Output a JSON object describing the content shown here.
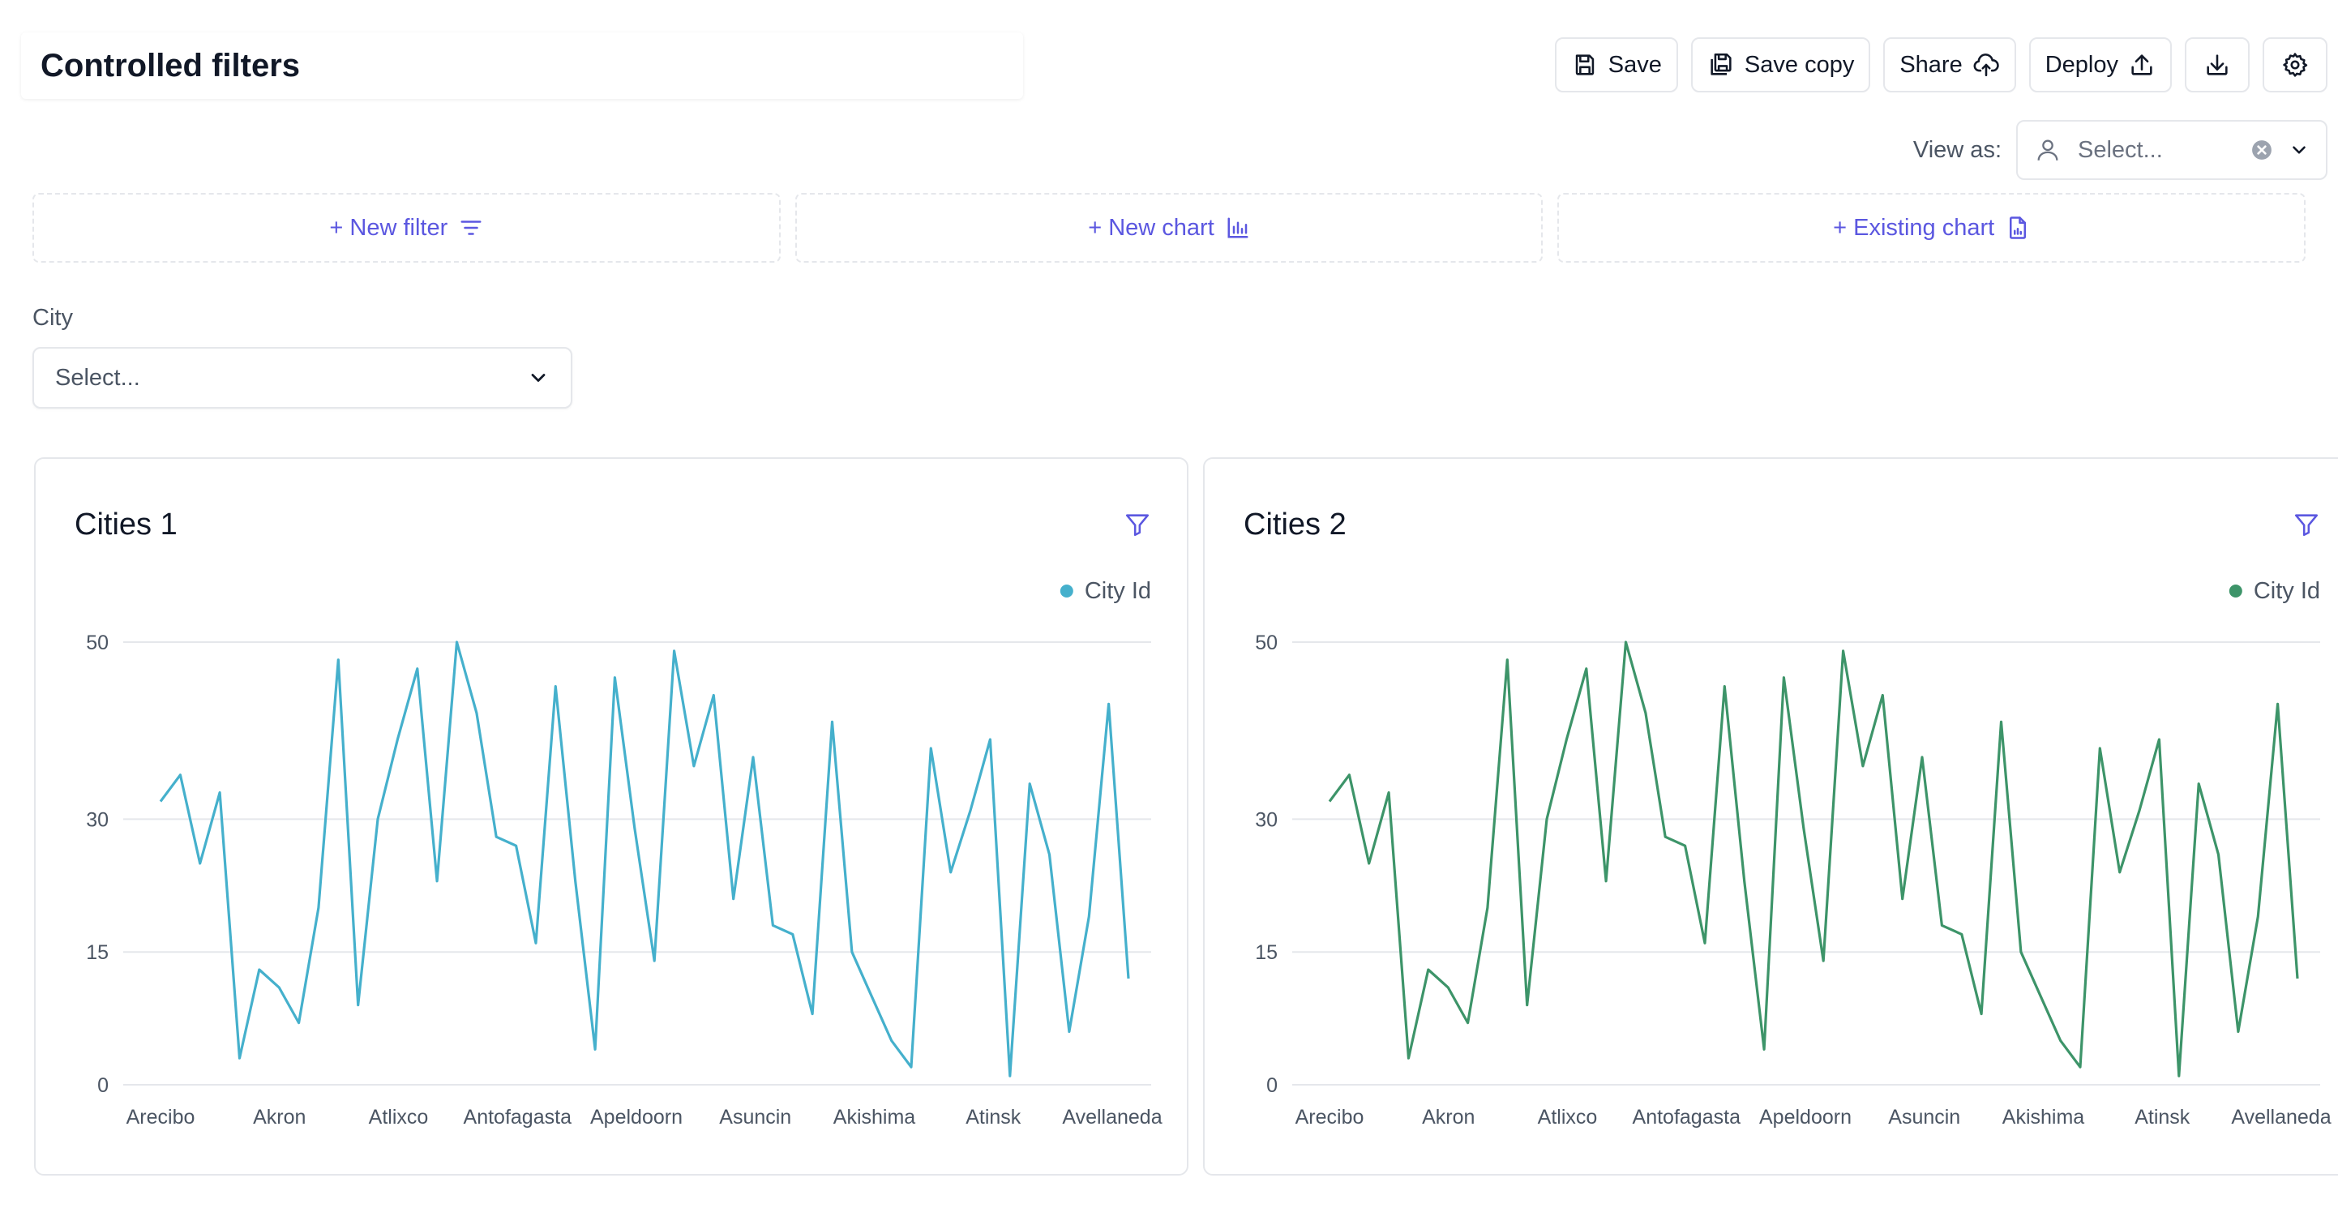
{
  "header": {
    "title": "Controlled filters"
  },
  "toolbar": {
    "save": "Save",
    "save_copy": "Save copy",
    "share": "Share",
    "deploy": "Deploy"
  },
  "view_as": {
    "label": "View as:",
    "placeholder": "Select..."
  },
  "add_row": {
    "new_filter": "+ New filter",
    "new_chart": "+ New chart",
    "existing_chart": "+ Existing chart"
  },
  "filter": {
    "label": "City",
    "placeholder": "Select..."
  },
  "colors": {
    "accent": "#5b57e0",
    "series1": "#45b0cc",
    "series2": "#3d9469",
    "grid": "#e5e7eb"
  },
  "chart_data": [
    {
      "type": "line",
      "title": "Cities 1",
      "legend": {
        "position": "top-right"
      },
      "grid": true,
      "ylim": [
        0,
        50
      ],
      "yticks": [
        0,
        15,
        30,
        50
      ],
      "x_tick_labels": [
        "Arecibo",
        "Akron",
        "Atlixco",
        "Antofagasta",
        "Apeldoorn",
        "Asuncin",
        "Akishima",
        "Atinsk",
        "Avellaneda"
      ],
      "series": [
        {
          "name": "City Id",
          "color": "#45b0cc",
          "values": [
            32,
            35,
            25,
            33,
            3,
            13,
            11,
            7,
            20,
            48,
            9,
            30,
            39,
            47,
            23,
            50,
            42,
            28,
            27,
            16,
            45,
            23,
            4,
            46,
            29,
            14,
            49,
            36,
            44,
            21,
            37,
            18,
            17,
            8,
            41,
            15,
            10,
            5,
            2,
            38,
            24,
            31,
            39,
            1,
            34,
            26,
            6,
            19,
            43,
            12
          ]
        }
      ]
    },
    {
      "type": "line",
      "title": "Cities 2",
      "legend": {
        "position": "top-right"
      },
      "grid": true,
      "ylim": [
        0,
        50
      ],
      "yticks": [
        0,
        15,
        30,
        50
      ],
      "x_tick_labels": [
        "Arecibo",
        "Akron",
        "Atlixco",
        "Antofagasta",
        "Apeldoorn",
        "Asuncin",
        "Akishima",
        "Atinsk",
        "Avellaneda"
      ],
      "series": [
        {
          "name": "City Id",
          "color": "#3d9469",
          "values": [
            32,
            35,
            25,
            33,
            3,
            13,
            11,
            7,
            20,
            48,
            9,
            30,
            39,
            47,
            23,
            50,
            42,
            28,
            27,
            16,
            45,
            23,
            4,
            46,
            29,
            14,
            49,
            36,
            44,
            21,
            37,
            18,
            17,
            8,
            41,
            15,
            10,
            5,
            2,
            38,
            24,
            31,
            39,
            1,
            34,
            26,
            6,
            19,
            43,
            12
          ]
        }
      ]
    }
  ]
}
